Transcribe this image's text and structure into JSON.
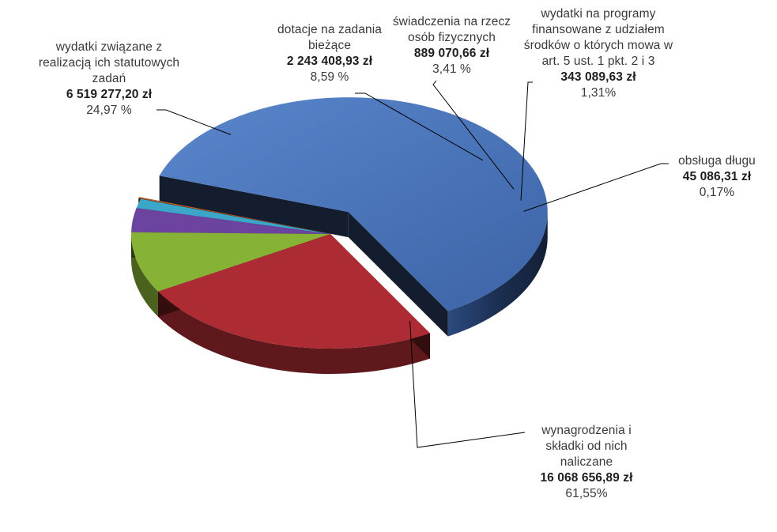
{
  "chart_data": {
    "type": "pie",
    "slices": [
      {
        "label": "wynagrodzenia i składki od nich naliczane",
        "value": "16 068 656,89 zł",
        "percent": "61,55%",
        "share": 61.55,
        "color": "#4a74b8"
      },
      {
        "label": "obsługa długu",
        "value": "45 086,31 zł",
        "percent": "0,17%",
        "share": 0.17,
        "color": "#c05a22"
      },
      {
        "label": "wydatki na programy finansowane z udziałem środków o których mowa  w art. 5 ust. 1 pkt. 2 i 3",
        "value": "343 089,63 zł",
        "percent": "1,31%",
        "share": 1.31,
        "color": "#3ba6c8"
      },
      {
        "label": "świadczenia na rzecz osób fizycznych",
        "value": "889 070,66 zł",
        "percent": "3,41 %",
        "share": 3.41,
        "color": "#6c44a0"
      },
      {
        "label": "dotacje na zadania bieżące",
        "value": "2 243 408,93 zł",
        "percent": "8,59 %",
        "share": 8.59,
        "color": "#86b236"
      },
      {
        "label": "wydatki związane z realizacją ich statutowych zadań",
        "value": "6 519 277,20 zł",
        "percent": "24,97 %",
        "share": 24.97,
        "color": "#ad2b32"
      }
    ],
    "exploded_slice": "wynagrodzenia i składki od nich naliczane",
    "legend": "none",
    "style": "3d"
  }
}
